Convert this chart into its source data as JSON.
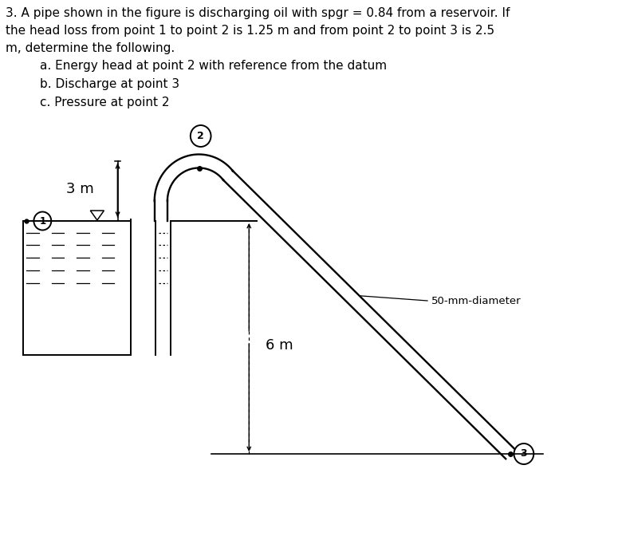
{
  "title_line1": "3. A pipe shown in the figure is discharging oil with spgr = 0.84 from a reservoir. If",
  "title_line2": "the head loss from point 1 to point 2 is 1.25 m and from point 2 to point 3 is 2.5",
  "title_line3": "m, determine the following.",
  "sub_items": [
    "a. Energy head at point 2 with reference from the datum",
    "b. Discharge at point 3",
    "c. Pressure at point 2"
  ],
  "label_3m": "3 m",
  "label_6m": "6 m",
  "label_diameter": "50-mm-diameter",
  "bg_color": "#ffffff",
  "line_color": "#000000",
  "text_color": "#000000",
  "title_fontsize": 11.0,
  "label_fontsize": 13
}
